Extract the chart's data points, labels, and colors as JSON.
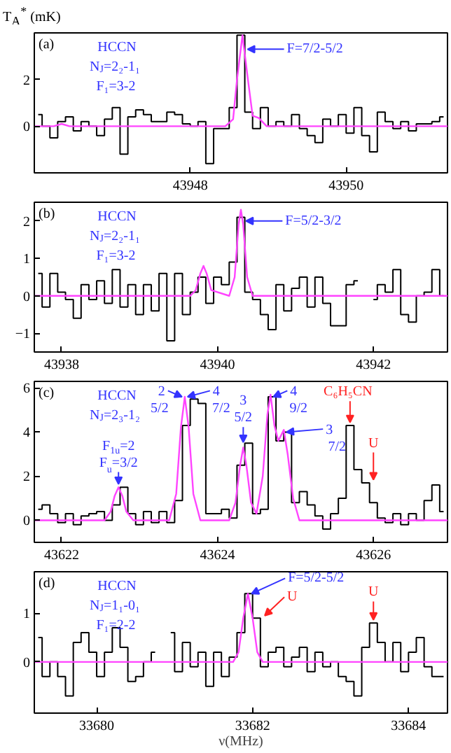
{
  "chart_data": [
    {
      "type": "step",
      "ylabel": "T$_{A}$$^{*}$ (mK)",
      "xlim": [
        43946.0,
        43951.3
      ],
      "ylim": [
        -2,
        4
      ],
      "xticks": [
        43948,
        43950
      ],
      "yticks": [
        0,
        2
      ],
      "series": [
        {
          "color": "#000000",
          "x": [
            43946.05,
            43946.15,
            43946.25,
            43946.35,
            43946.45,
            43946.55,
            43946.65,
            43946.75,
            43946.85,
            43946.95,
            43947.05,
            43947.15,
            43947.25,
            43947.35,
            43947.45,
            43947.55,
            43947.65,
            43947.75,
            43947.85,
            43947.95,
            43948.05,
            43948.15,
            43948.25,
            43948.35,
            43948.45,
            43948.55,
            43948.65,
            43948.75,
            43948.85,
            43948.95,
            43949.05,
            43949.15,
            43949.25,
            43949.35,
            43949.45,
            43949.55,
            43949.65,
            43949.75,
            43949.85,
            43949.95,
            43950.05,
            43950.15,
            43950.25,
            43950.35,
            43950.45,
            43950.55,
            43950.65,
            43950.75,
            43950.85,
            43950.95,
            43951.05,
            43951.15,
            43951.25
          ],
          "values": [
            0.5,
            0,
            -0.5,
            0.2,
            0.4,
            -0.2,
            0.2,
            0,
            -0.4,
            0.3,
            0.8,
            -1.2,
            0.4,
            0.7,
            0.5,
            0.2,
            0.2,
            0.6,
            0.5,
            0.1,
            0,
            0.2,
            -1.6,
            -0.1,
            -0.1,
            0.8,
            3.9,
            0.6,
            -0.1,
            0.8,
            0,
            0.2,
            0,
            0.5,
            -0.1,
            -0.4,
            -0.7,
            0.3,
            0,
            0.5,
            -0.3,
            0.8,
            -0.4,
            -1.1,
            0.6,
            0.2,
            -0.1,
            0.2,
            -0.2,
            0.1,
            0.1,
            0.2,
            0.4
          ]
        },
        {
          "type": "line",
          "color": "#ff44ff",
          "x": [
            43946.0,
            43946.25,
            43946.35,
            43946.45,
            43948.45,
            43948.55,
            43948.6,
            43948.67,
            43948.74,
            43948.8,
            43948.88,
            43948.98,
            43951.3
          ],
          "values": [
            0,
            0,
            0.1,
            0,
            0,
            0.3,
            2.0,
            3.9,
            2.0,
            0.45,
            0.35,
            0,
            0
          ]
        }
      ],
      "annotations": [
        "(a)",
        "HCCN",
        "N$_{J}$=2₂-1₁",
        "F₁=3-2",
        {
          "text": "F=7/2-5/2",
          "x": 43948.7,
          "y": 3.3
        }
      ]
    },
    {
      "type": "step",
      "xlim": [
        43937.65,
        43942.95
      ],
      "ylim": [
        -1.5,
        2.5
      ],
      "xticks": [
        43938,
        43940,
        43942
      ],
      "yticks": [
        -1,
        0,
        1,
        2
      ],
      "series": [
        {
          "color": "#000000",
          "x": [
            43937.7,
            43937.8,
            43937.9,
            43938.0,
            43938.1,
            43938.2,
            43938.3,
            43938.4,
            43938.5,
            43938.6,
            43938.7,
            43938.8,
            43938.9,
            43939.0,
            43939.1,
            43939.2,
            43939.3,
            43939.4,
            43939.5,
            43939.6,
            43939.7,
            43939.8,
            43939.9,
            43940.0,
            43940.1,
            43940.2,
            43940.3,
            43940.4,
            43940.5,
            43940.6,
            43940.7,
            43940.8,
            43940.9,
            43941.0,
            43941.1,
            43941.2,
            43941.3,
            43941.4,
            43941.5,
            43941.6,
            43941.7,
            43941.8,
            43941.9,
            43942.0,
            43942.1,
            43942.2,
            43942.3,
            43942.4,
            43942.5,
            43942.6,
            43942.7,
            43942.8,
            43942.9
          ],
          "values": [
            0.6,
            -0.3,
            0.6,
            0.1,
            -0.1,
            -0.6,
            0.3,
            -0.1,
            0.4,
            -0.2,
            0.7,
            -0.3,
            0.3,
            -0.5,
            0.3,
            -0.4,
            0.6,
            -1.2,
            0.6,
            -0.5,
            0.1,
            0.5,
            -0.2,
            0.5,
            0.3,
            0.9,
            2.1,
            0.1,
            -0.1,
            -0.5,
            -0.9,
            0.3,
            -0.4,
            0.2,
            0.5,
            -0.3,
            0.5,
            -0.2,
            -0.8,
            -0.8,
            0.3,
            0.4,
            null,
            -0.1,
            0.3,
            0.1,
            0.7,
            -0.5,
            -0.7,
            0,
            0.1,
            0.7,
            0
          ]
        },
        {
          "type": "line",
          "color": "#ff44ff",
          "x": [
            43937.65,
            43939.65,
            43939.72,
            43939.78,
            43939.82,
            43939.86,
            43939.92,
            43940.15,
            43940.22,
            43940.27,
            43940.3,
            43940.33,
            43940.38,
            43940.45,
            43942.95
          ],
          "values": [
            0,
            0,
            0.15,
            0.6,
            0.8,
            0.6,
            0.15,
            0,
            0.5,
            1.9,
            2.3,
            1.9,
            0.5,
            0,
            0
          ]
        }
      ],
      "annotations": [
        "(b)",
        "HCCN",
        "N$_{J}$=2₂-1₁",
        "F₁=3-2",
        {
          "text": "F=5/2-3/2",
          "x": 43940.33,
          "y": 2.0
        }
      ]
    },
    {
      "type": "step",
      "xlim": [
        43621.65,
        43626.95
      ],
      "ylim": [
        -1,
        6.3
      ],
      "xticks": [
        43622,
        43624,
        43626
      ],
      "yticks": [
        0,
        2,
        4,
        6
      ],
      "series": [
        {
          "color": "#000000",
          "x": [
            43621.7,
            43621.8,
            43621.9,
            43622.0,
            43622.1,
            43622.2,
            43622.3,
            43622.4,
            43622.5,
            43622.6,
            43622.7,
            43622.8,
            43622.9,
            43623.0,
            43623.1,
            43623.2,
            43623.3,
            43623.4,
            43623.5,
            43623.6,
            43623.7,
            43623.8,
            43623.9,
            43624.0,
            43624.1,
            43624.2,
            43624.3,
            43624.4,
            43624.5,
            43624.6,
            43624.7,
            43624.8,
            43624.9,
            43625.0,
            43625.1,
            43625.2,
            43625.3,
            43625.4,
            43625.5,
            43625.6,
            43625.7,
            43625.8,
            43625.9,
            43626.0,
            43626.1,
            43626.2,
            43626.3,
            43626.4,
            43626.5,
            43626.6,
            43626.7,
            43626.8,
            43626.9
          ],
          "values": [
            0.5,
            0.7,
            0.3,
            -0.1,
            0.3,
            -0.2,
            0.2,
            0.3,
            0.4,
            0,
            0.7,
            1.5,
            0.3,
            -0.2,
            0.4,
            -0.1,
            0.4,
            -0.1,
            0.9,
            4.3,
            5.5,
            5.3,
            0.3,
            0.3,
            0.5,
            0.1,
            2.5,
            3.5,
            0.3,
            0.5,
            5.6,
            3.6,
            4.0,
            0.8,
            1.3,
            0.7,
            0.2,
            -0.4,
            0.3,
            1.0,
            4.3,
            2.3,
            1.7,
            0.8,
            0.1,
            -0.1,
            0.3,
            -0.2,
            0.3,
            0,
            0.9,
            1.6,
            0.4
          ]
        },
        {
          "type": "line",
          "color": "#ff44ff",
          "x": [
            43621.65,
            43622.55,
            43622.63,
            43622.68,
            43622.73,
            43622.78,
            43622.83,
            43622.92,
            43623.38,
            43623.47,
            43623.53,
            43623.58,
            43623.63,
            43623.69,
            43623.78,
            43624.15,
            43624.23,
            43624.29,
            43624.33,
            43624.37,
            43624.43,
            43624.5,
            43624.58,
            43624.64,
            43624.68,
            43624.73,
            43624.78,
            43624.85,
            43624.9,
            43624.97,
            43625.05,
            43626.95
          ],
          "values": [
            0,
            0,
            0.4,
            1.1,
            1.5,
            1.1,
            0.4,
            0,
            0,
            1.2,
            4.2,
            5.6,
            4.2,
            1.2,
            0,
            0,
            0.8,
            2.5,
            3.3,
            2.5,
            0.8,
            0.3,
            2.0,
            4.8,
            5.7,
            4.3,
            3.6,
            4.1,
            3.0,
            1.0,
            0,
            0
          ]
        }
      ],
      "annotations": [
        "(c)",
        "HCCN",
        "N$_{J}$=2₃-1₂",
        {
          "text": "F$_{1u}$=2",
          "x": 43622.73,
          "y": 1.5
        },
        {
          "text": "F$_{u}$=3/2",
          "x": 43622.73,
          "y": 1.5
        },
        {
          "text": "2",
          "x": 43623.58,
          "y": 5.6
        },
        {
          "text": "5/2",
          "x": 43623.58,
          "y": 5.6
        },
        {
          "text": "4",
          "x": 43623.58,
          "y": 5.6
        },
        {
          "text": "7/2",
          "x": 43623.58,
          "y": 5.6
        },
        {
          "text": "3",
          "x": 43624.33,
          "y": 3.4
        },
        {
          "text": "5/2",
          "x": 43624.33,
          "y": 3.4
        },
        {
          "text": "4",
          "x": 43624.68,
          "y": 5.6
        },
        {
          "text": "9/2",
          "x": 43624.68,
          "y": 5.6
        },
        {
          "text": "3",
          "x": 43624.85,
          "y": 4.0
        },
        {
          "text": "7/2",
          "x": 43624.85,
          "y": 4.0
        },
        {
          "text": "C₆H₅CN",
          "x": 43625.7,
          "y": 4.3
        },
        {
          "text": "U",
          "x": 43626.0,
          "y": 1.7
        }
      ]
    },
    {
      "type": "step",
      "xlabel": "ν(MHz)",
      "xlim": [
        33679.2,
        33684.5
      ],
      "ylim": [
        -1.05,
        1.85
      ],
      "xticks": [
        33680,
        33682,
        33684
      ],
      "yticks": [
        0,
        1
      ],
      "series": [
        {
          "color": "#000000",
          "x": [
            33679.25,
            33679.35,
            33679.45,
            33679.55,
            33679.65,
            33679.75,
            33679.85,
            33679.95,
            33680.05,
            33680.15,
            33680.25,
            33680.35,
            33680.45,
            33680.55,
            33680.65,
            33680.75,
            33680.85,
            33680.95,
            33681.05,
            33681.15,
            33681.25,
            33681.35,
            33681.45,
            33681.55,
            33681.65,
            33681.75,
            33681.85,
            33681.95,
            33682.05,
            33682.15,
            33682.25,
            33682.35,
            33682.45,
            33682.55,
            33682.65,
            33682.75,
            33682.85,
            33682.95,
            33683.05,
            33683.15,
            33683.25,
            33683.35,
            33683.45,
            33683.55,
            33683.65,
            33683.75,
            33683.85,
            33683.95,
            33684.05,
            33684.15,
            33684.25,
            33684.35,
            33684.45
          ],
          "values": [
            0.5,
            -0.3,
            0,
            -0.3,
            -0.7,
            0.4,
            0.6,
            0.2,
            -0.3,
            0.2,
            0.7,
            0.3,
            -0.4,
            -0.3,
            0,
            0.2,
            null,
            0.6,
            -0.2,
            0.4,
            -0.1,
            0.2,
            -0.5,
            0.2,
            -0.3,
            0.1,
            0.6,
            1.4,
            0.9,
            -0.1,
            0.2,
            0.3,
            -0.1,
            0.1,
            0.3,
            -0.2,
            0.2,
            -0.1,
            0,
            -0.3,
            -0.4,
            -0.7,
            0.3,
            0.8,
            0.4,
            0,
            0.4,
            -0.2,
            0.2,
            0.5,
            -0.1,
            -0.3,
            -0.3
          ]
        },
        {
          "type": "line",
          "color": "#ff44ff",
          "x": [
            33679.2,
            33681.75,
            33681.82,
            33681.88,
            33681.94,
            33682.0,
            33682.06,
            33682.13,
            33684.5
          ],
          "values": [
            0,
            0,
            0.2,
            0.9,
            1.4,
            0.9,
            0.2,
            0,
            0
          ]
        }
      ],
      "annotations": [
        "(d)",
        "HCCN",
        "N$_{J}$=1₁-0₁",
        "F₁=2-2",
        {
          "text": "F=5/2-5/2",
          "x": 33681.95,
          "y": 1.4
        },
        {
          "text": "U",
          "x": 33682.12,
          "y": 0.95
        },
        {
          "text": "U",
          "x": 33683.55,
          "y": 0.8
        }
      ]
    }
  ]
}
